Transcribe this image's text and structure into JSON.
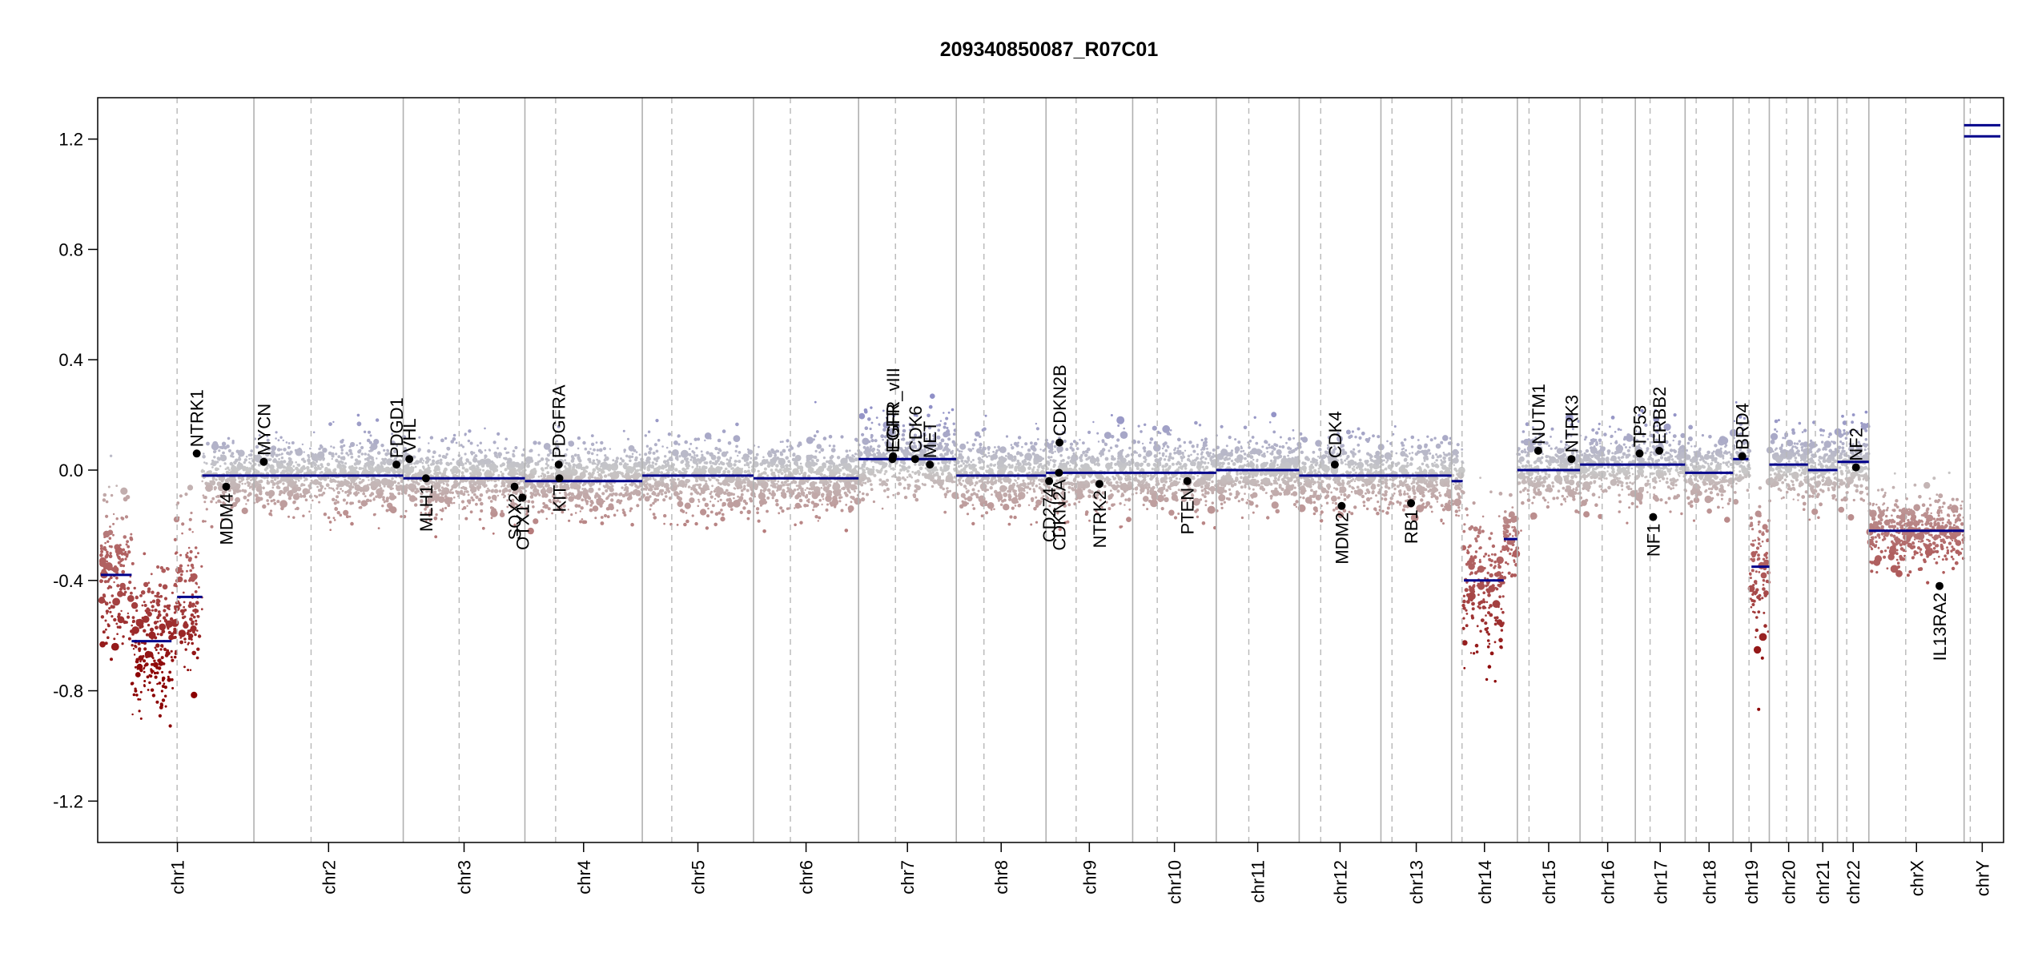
{
  "chart_data": {
    "type": "scatter",
    "title": "209340850087_R07C01",
    "xlabel": "",
    "ylabel": "",
    "ylim": [
      -1.35,
      1.35
    ],
    "yticks": [
      "1.2",
      "0.8",
      "0.4",
      "0.0",
      "-0.4",
      "-0.8",
      "-1.2"
    ],
    "chromosomes": [
      {
        "name": "chr1",
        "length": 249,
        "centromere": 124
      },
      {
        "name": "chr2",
        "length": 243,
        "centromere": 93
      },
      {
        "name": "chr3",
        "length": 198,
        "centromere": 91
      },
      {
        "name": "chr4",
        "length": 191,
        "centromere": 50
      },
      {
        "name": "chr5",
        "length": 181,
        "centromere": 48
      },
      {
        "name": "chr6",
        "length": 171,
        "centromere": 60
      },
      {
        "name": "chr7",
        "length": 159,
        "centromere": 60
      },
      {
        "name": "chr8",
        "length": 146,
        "centromere": 45
      },
      {
        "name": "chr9",
        "length": 141,
        "centromere": 49
      },
      {
        "name": "chr10",
        "length": 136,
        "centromere": 40
      },
      {
        "name": "chr11",
        "length": 135,
        "centromere": 53
      },
      {
        "name": "chr12",
        "length": 133,
        "centromere": 35
      },
      {
        "name": "chr13",
        "length": 115,
        "centromere": 18
      },
      {
        "name": "chr14",
        "length": 107,
        "centromere": 17
      },
      {
        "name": "chr15",
        "length": 102,
        "centromere": 19
      },
      {
        "name": "chr16",
        "length": 90,
        "centromere": 36
      },
      {
        "name": "chr17",
        "length": 81,
        "centromere": 24
      },
      {
        "name": "chr18",
        "length": 78,
        "centromere": 18
      },
      {
        "name": "chr19",
        "length": 59,
        "centromere": 26
      },
      {
        "name": "chr20",
        "length": 63,
        "centromere": 28
      },
      {
        "name": "chr21",
        "length": 48,
        "centromere": 12
      },
      {
        "name": "chr22",
        "length": 51,
        "centromere": 15
      },
      {
        "name": "chrX",
        "length": 155,
        "centromere": 60
      },
      {
        "name": "chrY",
        "length": 59,
        "centromere": 10
      }
    ],
    "segments": [
      {
        "chr": "chr1",
        "start": 0,
        "end": 50,
        "value": -0.38
      },
      {
        "chr": "chr1",
        "start": 50,
        "end": 115,
        "value": -0.62
      },
      {
        "chr": "chr1",
        "start": 124,
        "end": 165,
        "value": -0.46
      },
      {
        "chr": "chr1",
        "start": 165,
        "end": 249,
        "value": -0.02
      },
      {
        "chr": "chr2",
        "start": 0,
        "end": 243,
        "value": -0.02
      },
      {
        "chr": "chr3",
        "start": 0,
        "end": 198,
        "value": -0.03
      },
      {
        "chr": "chr4",
        "start": 0,
        "end": 191,
        "value": -0.04
      },
      {
        "chr": "chr5",
        "start": 0,
        "end": 181,
        "value": -0.02
      },
      {
        "chr": "chr6",
        "start": 0,
        "end": 171,
        "value": -0.03
      },
      {
        "chr": "chr7",
        "start": 0,
        "end": 159,
        "value": 0.04
      },
      {
        "chr": "chr8",
        "start": 0,
        "end": 146,
        "value": -0.02
      },
      {
        "chr": "chr9",
        "start": 0,
        "end": 141,
        "value": -0.01
      },
      {
        "chr": "chr10",
        "start": 0,
        "end": 136,
        "value": -0.01
      },
      {
        "chr": "chr11",
        "start": 0,
        "end": 135,
        "value": 0.0
      },
      {
        "chr": "chr12",
        "start": 0,
        "end": 133,
        "value": -0.02
      },
      {
        "chr": "chr13",
        "start": 0,
        "end": 115,
        "value": -0.02
      },
      {
        "chr": "chr14",
        "start": 0,
        "end": 18,
        "value": -0.04
      },
      {
        "chr": "chr14",
        "start": 20,
        "end": 85,
        "value": -0.4
      },
      {
        "chr": "chr14",
        "start": 85,
        "end": 107,
        "value": -0.25
      },
      {
        "chr": "chr15",
        "start": 0,
        "end": 102,
        "value": 0.0
      },
      {
        "chr": "chr16",
        "start": 0,
        "end": 90,
        "value": 0.02
      },
      {
        "chr": "chr17",
        "start": 0,
        "end": 81,
        "value": 0.02
      },
      {
        "chr": "chr18",
        "start": 0,
        "end": 78,
        "value": -0.01
      },
      {
        "chr": "chr19",
        "start": 0,
        "end": 25,
        "value": 0.04
      },
      {
        "chr": "chr19",
        "start": 30,
        "end": 59,
        "value": -0.35
      },
      {
        "chr": "chr20",
        "start": 0,
        "end": 63,
        "value": 0.02
      },
      {
        "chr": "chr21",
        "start": 0,
        "end": 48,
        "value": 0.0
      },
      {
        "chr": "chr22",
        "start": 0,
        "end": 51,
        "value": 0.03
      },
      {
        "chr": "chrX",
        "start": 0,
        "end": 155,
        "value": -0.22
      },
      {
        "chr": "chrY",
        "start": 0,
        "end": 59,
        "value": 1.21
      },
      {
        "chr": "chrY",
        "start": 0,
        "end": 59,
        "value": 1.25
      }
    ],
    "genes": [
      {
        "name": "NTRK1",
        "chr": "chr1",
        "pos": 156,
        "value": 0.06,
        "side": "above"
      },
      {
        "name": "MDM4",
        "chr": "chr1",
        "pos": 204,
        "value": -0.06,
        "side": "below"
      },
      {
        "name": "MYCN",
        "chr": "chr2",
        "pos": 16,
        "value": 0.03,
        "side": "above"
      },
      {
        "name": "PDGD1",
        "chr": "chr2",
        "pos": 232,
        "value": 0.02,
        "side": "above"
      },
      {
        "name": "VHL",
        "chr": "chr3",
        "pos": 10,
        "value": 0.04,
        "side": "above"
      },
      {
        "name": "MLH1",
        "chr": "chr3",
        "pos": 37,
        "value": -0.03,
        "side": "below"
      },
      {
        "name": "SOX2",
        "chr": "chr3",
        "pos": 181,
        "value": -0.06,
        "side": "below"
      },
      {
        "name": "OTX1",
        "chr": "chr3",
        "pos": 194,
        "value": -0.1,
        "side": "below"
      },
      {
        "name": "PDGFRA",
        "chr": "chr4",
        "pos": 55,
        "value": 0.02,
        "side": "above"
      },
      {
        "name": "KIT",
        "chr": "chr4",
        "pos": 56,
        "value": -0.03,
        "side": "below"
      },
      {
        "name": "EGFR",
        "chr": "chr7",
        "pos": 55,
        "value": 0.04,
        "side": "above"
      },
      {
        "name": "EGFR_vIII",
        "chr": "chr7",
        "pos": 56,
        "value": 0.05,
        "side": "above"
      },
      {
        "name": "MET",
        "chr": "chr7",
        "pos": 116,
        "value": 0.02,
        "side": "above"
      },
      {
        "name": "CDK6",
        "chr": "chr7",
        "pos": 92,
        "value": 0.04,
        "side": "above"
      },
      {
        "name": "CD274",
        "chr": "chr9",
        "pos": 5,
        "value": -0.04,
        "side": "below"
      },
      {
        "name": "CDKN2A",
        "chr": "chr9",
        "pos": 21,
        "value": -0.01,
        "side": "below"
      },
      {
        "name": "CDKN2B",
        "chr": "chr9",
        "pos": 22,
        "value": 0.1,
        "side": "above"
      },
      {
        "name": "NTRK2",
        "chr": "chr9",
        "pos": 87,
        "value": -0.05,
        "side": "below"
      },
      {
        "name": "PTEN",
        "chr": "chr10",
        "pos": 89,
        "value": -0.04,
        "side": "below"
      },
      {
        "name": "CDK4",
        "chr": "chr12",
        "pos": 58,
        "value": 0.02,
        "side": "above"
      },
      {
        "name": "MDM2",
        "chr": "chr12",
        "pos": 69,
        "value": -0.13,
        "side": "below"
      },
      {
        "name": "RB1",
        "chr": "chr13",
        "pos": 49,
        "value": -0.12,
        "side": "below"
      },
      {
        "name": "NUTM1",
        "chr": "chr15",
        "pos": 34,
        "value": 0.07,
        "side": "above"
      },
      {
        "name": "NTRK3",
        "chr": "chr15",
        "pos": 88,
        "value": 0.04,
        "side": "above"
      },
      {
        "name": "TP53",
        "chr": "chr17",
        "pos": 7,
        "value": 0.06,
        "side": "above"
      },
      {
        "name": "NF1",
        "chr": "chr17",
        "pos": 29,
        "value": -0.17,
        "side": "below"
      },
      {
        "name": "ERBB2",
        "chr": "chr17",
        "pos": 39,
        "value": 0.07,
        "side": "above"
      },
      {
        "name": "BRD4",
        "chr": "chr19",
        "pos": 15,
        "value": 0.05,
        "side": "above"
      },
      {
        "name": "NF2",
        "chr": "chr22",
        "pos": 30,
        "value": 0.01,
        "side": "above"
      },
      {
        "name": "IL13RA2",
        "chr": "chrX",
        "pos": 115,
        "value": -0.42,
        "side": "below"
      }
    ],
    "colors": {
      "gain": "#8f8fc7",
      "neutral": "#c8c8c8",
      "loss": "#b06060",
      "deep_loss": "#8b0000",
      "segment": "#00008b",
      "gene_point": "#000000",
      "chr_boundary": "#b0b0b0",
      "centromere": "#b8b8b8"
    }
  }
}
